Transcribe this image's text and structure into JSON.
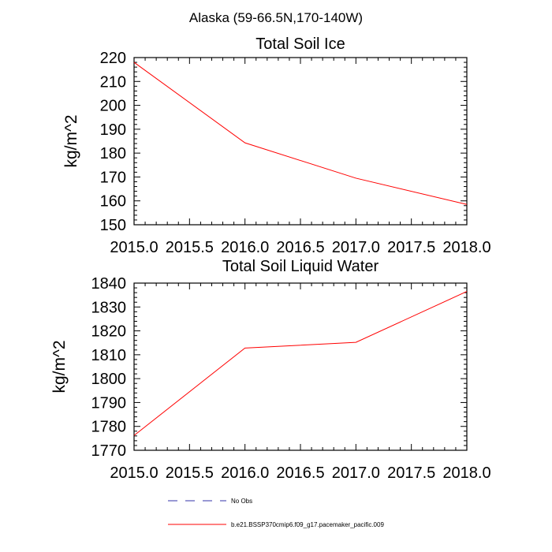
{
  "figure_title": "Alaska (59-66.5N,170-140W)",
  "chart_data": [
    {
      "type": "line",
      "title": "Total Soil Ice",
      "xlabel": "",
      "ylabel": "kg/m^2",
      "xlim": [
        2015.0,
        2018.0
      ],
      "ylim": [
        150,
        220
      ],
      "xticks": [
        2015.0,
        2015.5,
        2016.0,
        2016.5,
        2017.0,
        2017.5,
        2018.0
      ],
      "xtick_labels": [
        "2015.0",
        "2015.5",
        "2016.0",
        "2016.5",
        "2017.0",
        "2017.5",
        "2018.0"
      ],
      "yticks": [
        150,
        160,
        170,
        180,
        190,
        200,
        210,
        220
      ],
      "ytick_labels": [
        "150",
        "160",
        "170",
        "180",
        "190",
        "200",
        "210",
        "220"
      ],
      "grid": false,
      "series": [
        {
          "name": "b.e21.BSSP370cmip6.f09_g17.pacemaker_pacific.009",
          "color": "#ff0000",
          "x": [
            2015.0,
            2016.0,
            2017.0,
            2018.0
          ],
          "y": [
            218.0,
            184.3,
            169.5,
            158.5
          ]
        }
      ]
    },
    {
      "type": "line",
      "title": "Total Soil Liquid Water",
      "xlabel": "",
      "ylabel": "kg/m^2",
      "xlim": [
        2015.0,
        2018.0
      ],
      "ylim": [
        1770,
        1840
      ],
      "xticks": [
        2015.0,
        2015.5,
        2016.0,
        2016.5,
        2017.0,
        2017.5,
        2018.0
      ],
      "xtick_labels": [
        "2015.0",
        "2015.5",
        "2016.0",
        "2016.5",
        "2017.0",
        "2017.5",
        "2018.0"
      ],
      "yticks": [
        1770,
        1780,
        1790,
        1800,
        1810,
        1820,
        1830,
        1840
      ],
      "ytick_labels": [
        "1770",
        "1780",
        "1790",
        "1800",
        "1810",
        "1820",
        "1830",
        "1840"
      ],
      "grid": false,
      "series": [
        {
          "name": "b.e21.BSSP370cmip6.f09_g17.pacemaker_pacific.009",
          "color": "#ff0000",
          "x": [
            2015.0,
            2016.0,
            2017.0,
            2018.0
          ],
          "y": [
            1776.2,
            1812.8,
            1815.2,
            1836.5
          ]
        }
      ]
    }
  ],
  "legend": {
    "placement": "bottom",
    "items": [
      {
        "label": "No Obs",
        "style": "dashed",
        "color": "#3333aa"
      },
      {
        "label": "b.e21.BSSP370cmip6.f09_g17.pacemaker_pacific.009",
        "style": "solid",
        "color": "#ff0000"
      }
    ]
  }
}
